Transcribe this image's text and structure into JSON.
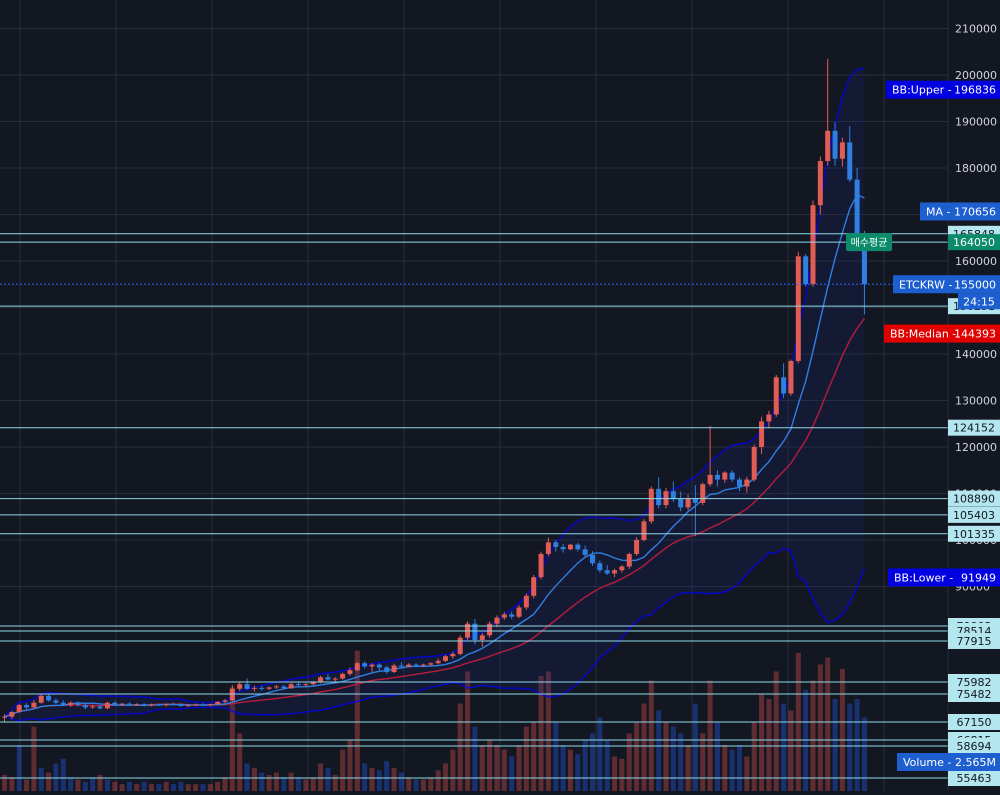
{
  "chart_data": {
    "type": "candlestick",
    "symbol_label": "ETCKRW",
    "last_price": 155000,
    "countdown": "24:15",
    "grid": true,
    "price_axis": {
      "range": [
        75000,
        212000
      ],
      "ticks": [
        90000,
        100000,
        110000,
        120000,
        130000,
        140000,
        150000,
        160000,
        170000,
        180000,
        190000,
        200000,
        210000
      ],
      "tick_labels": [
        "90000",
        "100000",
        "110000",
        "120000",
        "130000",
        "140000",
        "150000",
        "160000",
        "170000",
        "180000",
        "190000",
        "200000",
        "210000"
      ]
    },
    "indicators": {
      "bb_upper": {
        "label": "BB:Upper",
        "value": 196836,
        "color": "#0000ff"
      },
      "ma": {
        "label": "MA",
        "value": 170656,
        "color": "#2962ff"
      },
      "bb_median": {
        "label": "BB:Median",
        "value": 144393,
        "color": "#ff0000"
      },
      "bb_lower": {
        "label": "BB:Lower",
        "value": 91949,
        "color": "#0000ff"
      },
      "avg_buy": {
        "label": "매수평균",
        "value": 164050,
        "color": "#0b8b6a"
      },
      "volume": {
        "label": "Volume",
        "value": "2.565M"
      }
    },
    "horizontal_levels": [
      165848,
      164050,
      150291,
      124152,
      108890,
      105403,
      101335
    ],
    "horizontal_level_labels": [
      "165848",
      "164050",
      "150291",
      "124152",
      "108890",
      "105403",
      "101335"
    ],
    "lower_levels": [
      79003,
      78514,
      77915,
      75982,
      75482,
      67150,
      66815,
      58694,
      55463
    ],
    "lower_level_labels": [
      "79003",
      "78514",
      "77915",
      "75982",
      "75482",
      "67150",
      "66815",
      "58694",
      "55463"
    ],
    "candles": [
      [
        61800,
        62500,
        60800,
        62000
      ],
      [
        62000,
        63200,
        61500,
        63000
      ],
      [
        63000,
        64800,
        62800,
        64500
      ],
      [
        64500,
        64900,
        63600,
        64000
      ],
      [
        64000,
        65600,
        63800,
        65000
      ],
      [
        65000,
        66800,
        64800,
        66500
      ],
      [
        66500,
        66900,
        65200,
        65500
      ],
      [
        65500,
        65900,
        64700,
        65000
      ],
      [
        65000,
        65500,
        64300,
        64500
      ],
      [
        64500,
        65300,
        64100,
        65000
      ],
      [
        65000,
        65300,
        64200,
        64500
      ],
      [
        64500,
        64800,
        63600,
        64000
      ],
      [
        64000,
        64600,
        63700,
        64200
      ],
      [
        64200,
        64500,
        63600,
        63800
      ],
      [
        63800,
        65200,
        63600,
        65000
      ],
      [
        65000,
        65300,
        64400,
        64600
      ],
      [
        64600,
        65000,
        64300,
        64800
      ],
      [
        64800,
        65100,
        64400,
        64600
      ],
      [
        64600,
        64900,
        64300,
        64700
      ],
      [
        64700,
        64900,
        64200,
        64400
      ],
      [
        64400,
        64800,
        64200,
        64600
      ],
      [
        64600,
        64800,
        64300,
        64500
      ],
      [
        64500,
        64800,
        64200,
        64700
      ],
      [
        64700,
        65000,
        64400,
        64600
      ],
      [
        64600,
        64900,
        64200,
        64300
      ],
      [
        64300,
        64700,
        64100,
        64500
      ],
      [
        64500,
        64800,
        64300,
        64600
      ],
      [
        64600,
        64900,
        64300,
        64500
      ],
      [
        64500,
        64800,
        64200,
        64700
      ],
      [
        64700,
        65300,
        64500,
        65200
      ],
      [
        65200,
        65800,
        64900,
        65500
      ],
      [
        65500,
        68800,
        65300,
        68000
      ],
      [
        68000,
        69500,
        67500,
        69000
      ],
      [
        69000,
        70200,
        67800,
        68000
      ],
      [
        68000,
        68700,
        67400,
        68200
      ],
      [
        68200,
        68600,
        67600,
        68000
      ],
      [
        68000,
        68500,
        67700,
        68300
      ],
      [
        68300,
        68800,
        68000,
        68500
      ],
      [
        68500,
        68800,
        67900,
        68100
      ],
      [
        68100,
        69300,
        68000,
        69000
      ],
      [
        69000,
        69400,
        68500,
        68800
      ],
      [
        68800,
        69200,
        68500,
        69000
      ],
      [
        69000,
        69600,
        68700,
        69400
      ],
      [
        69400,
        70800,
        69200,
        70500
      ],
      [
        70500,
        71200,
        69800,
        70000
      ],
      [
        70000,
        70500,
        69500,
        70200
      ],
      [
        70200,
        71500,
        70000,
        71200
      ],
      [
        71200,
        72600,
        70800,
        72000
      ],
      [
        72000,
        73800,
        71800,
        73500
      ],
      [
        73500,
        73900,
        72400,
        72800
      ],
      [
        72800,
        73500,
        71600,
        73200
      ],
      [
        73200,
        73500,
        72000,
        72600
      ],
      [
        72600,
        73000,
        71200,
        71600
      ],
      [
        71600,
        73400,
        71400,
        73000
      ],
      [
        73000,
        73700,
        72300,
        72800
      ],
      [
        72800,
        73500,
        72600,
        73200
      ],
      [
        73200,
        73500,
        72700,
        73000
      ],
      [
        73000,
        73400,
        72800,
        73200
      ],
      [
        73200,
        73700,
        72900,
        73500
      ],
      [
        73500,
        74500,
        73200,
        74000
      ],
      [
        74000,
        75300,
        73800,
        75000
      ],
      [
        75000,
        76000,
        74400,
        75500
      ],
      [
        75500,
        79500,
        75200,
        79000
      ],
      [
        79000,
        82500,
        78500,
        82000
      ],
      [
        82000,
        83000,
        77500,
        78500
      ],
      [
        78500,
        80000,
        77000,
        79500
      ],
      [
        79500,
        82500,
        79000,
        82000
      ],
      [
        82000,
        83800,
        81200,
        83300
      ],
      [
        83300,
        84500,
        82800,
        84000
      ],
      [
        84000,
        84600,
        83000,
        83500
      ],
      [
        83500,
        86000,
        83200,
        85500
      ],
      [
        85500,
        88500,
        85000,
        88000
      ],
      [
        88000,
        92500,
        87500,
        92000
      ],
      [
        92000,
        97500,
        91500,
        97000
      ],
      [
        97000,
        100500,
        96500,
        99500
      ],
      [
        99500,
        100000,
        97500,
        98500
      ],
      [
        98500,
        99200,
        97300,
        98000
      ],
      [
        98000,
        99200,
        97800,
        99000
      ],
      [
        99000,
        99400,
        97500,
        98000
      ],
      [
        98000,
        98800,
        96400,
        96800
      ],
      [
        96800,
        97600,
        94400,
        95000
      ],
      [
        95000,
        95600,
        93000,
        93500
      ],
      [
        93500,
        94600,
        92500,
        92800
      ],
      [
        92800,
        93800,
        92000,
        93500
      ],
      [
        93500,
        94600,
        93000,
        94300
      ],
      [
        94300,
        97300,
        93800,
        97000
      ],
      [
        97000,
        100600,
        96600,
        100000
      ],
      [
        100000,
        104500,
        99700,
        104000
      ],
      [
        104000,
        111500,
        103500,
        111000
      ],
      [
        111000,
        113500,
        106800,
        107500
      ],
      [
        107500,
        111200,
        106800,
        110500
      ],
      [
        110500,
        112600,
        108200,
        108800
      ],
      [
        108800,
        110400,
        106200,
        107000
      ],
      [
        107000,
        109800,
        106400,
        109000
      ],
      [
        109000,
        111800,
        100800,
        108000
      ],
      [
        108000,
        112300,
        107500,
        112000
      ],
      [
        112000,
        124500,
        111500,
        114000
      ],
      [
        114000,
        115000,
        111500,
        113000
      ],
      [
        113000,
        114800,
        112300,
        114500
      ],
      [
        114500,
        115000,
        112500,
        113000
      ],
      [
        113000,
        113500,
        110500,
        111500
      ],
      [
        111500,
        113600,
        110200,
        113000
      ],
      [
        113000,
        120500,
        112500,
        120000
      ],
      [
        120000,
        126500,
        118500,
        125500
      ],
      [
        125500,
        127800,
        124000,
        127000
      ],
      [
        127000,
        135500,
        126500,
        135000
      ],
      [
        135000,
        138000,
        130500,
        131500
      ],
      [
        131500,
        138800,
        131000,
        138500
      ],
      [
        138500,
        162000,
        138000,
        161000
      ],
      [
        161000,
        161500,
        154500,
        155000
      ],
      [
        155000,
        173000,
        154500,
        172000
      ],
      [
        172000,
        182500,
        170000,
        181500
      ],
      [
        181500,
        203500,
        180500,
        188000
      ],
      [
        188000,
        189800,
        180500,
        182000
      ],
      [
        182000,
        186500,
        180300,
        185500
      ],
      [
        185500,
        189000,
        177000,
        177500
      ],
      [
        177500,
        180000,
        165000,
        165500
      ],
      [
        165500,
        166500,
        148500,
        155000
      ]
    ],
    "volume_bars": [
      [
        1,
        7
      ],
      [
        1,
        6
      ],
      [
        0,
        20
      ],
      [
        1,
        5
      ],
      [
        1,
        28
      ],
      [
        0,
        10
      ],
      [
        1,
        8
      ],
      [
        0,
        12
      ],
      [
        0,
        14
      ],
      [
        0,
        6
      ],
      [
        1,
        5
      ],
      [
        0,
        4
      ],
      [
        0,
        6
      ],
      [
        1,
        7
      ],
      [
        0,
        5
      ],
      [
        1,
        4
      ],
      [
        1,
        3
      ],
      [
        0,
        4
      ],
      [
        1,
        3
      ],
      [
        0,
        4
      ],
      [
        1,
        3
      ],
      [
        0,
        3
      ],
      [
        1,
        4
      ],
      [
        0,
        3
      ],
      [
        0,
        4
      ],
      [
        1,
        3
      ],
      [
        1,
        3
      ],
      [
        0,
        3
      ],
      [
        1,
        3
      ],
      [
        1,
        4
      ],
      [
        1,
        6
      ],
      [
        1,
        45
      ],
      [
        1,
        25
      ],
      [
        0,
        12
      ],
      [
        1,
        10
      ],
      [
        0,
        8
      ],
      [
        1,
        7
      ],
      [
        1,
        8
      ],
      [
        0,
        6
      ],
      [
        1,
        8
      ],
      [
        0,
        6
      ],
      [
        1,
        5
      ],
      [
        1,
        6
      ],
      [
        1,
        12
      ],
      [
        0,
        10
      ],
      [
        1,
        7
      ],
      [
        1,
        18
      ],
      [
        1,
        22
      ],
      [
        1,
        61
      ],
      [
        0,
        12
      ],
      [
        1,
        10
      ],
      [
        0,
        9
      ],
      [
        0,
        13
      ],
      [
        1,
        10
      ],
      [
        0,
        8
      ],
      [
        1,
        6
      ],
      [
        0,
        5
      ],
      [
        1,
        5
      ],
      [
        1,
        6
      ],
      [
        1,
        9
      ],
      [
        1,
        12
      ],
      [
        1,
        18
      ],
      [
        1,
        38
      ],
      [
        1,
        52
      ],
      [
        0,
        28
      ],
      [
        1,
        20
      ],
      [
        1,
        22
      ],
      [
        1,
        20
      ],
      [
        1,
        18
      ],
      [
        0,
        15
      ],
      [
        1,
        20
      ],
      [
        1,
        28
      ],
      [
        1,
        30
      ],
      [
        1,
        50
      ],
      [
        1,
        52
      ],
      [
        0,
        30
      ],
      [
        0,
        20
      ],
      [
        1,
        18
      ],
      [
        0,
        16
      ],
      [
        0,
        22
      ],
      [
        0,
        25
      ],
      [
        0,
        32
      ],
      [
        0,
        22
      ],
      [
        1,
        15
      ],
      [
        1,
        14
      ],
      [
        1,
        25
      ],
      [
        1,
        30
      ],
      [
        1,
        38
      ],
      [
        1,
        48
      ],
      [
        0,
        35
      ],
      [
        1,
        30
      ],
      [
        0,
        28
      ],
      [
        0,
        25
      ],
      [
        1,
        20
      ],
      [
        0,
        38
      ],
      [
        1,
        25
      ],
      [
        1,
        48
      ],
      [
        0,
        30
      ],
      [
        1,
        20
      ],
      [
        0,
        18
      ],
      [
        0,
        20
      ],
      [
        1,
        15
      ],
      [
        1,
        30
      ],
      [
        1,
        42
      ],
      [
        1,
        40
      ],
      [
        1,
        52
      ],
      [
        0,
        38
      ],
      [
        1,
        35
      ],
      [
        1,
        60
      ],
      [
        0,
        44
      ],
      [
        1,
        48
      ],
      [
        1,
        55
      ],
      [
        1,
        58
      ],
      [
        0,
        40
      ],
      [
        1,
        53
      ],
      [
        0,
        38
      ],
      [
        0,
        40
      ],
      [
        0,
        32
      ]
    ]
  }
}
